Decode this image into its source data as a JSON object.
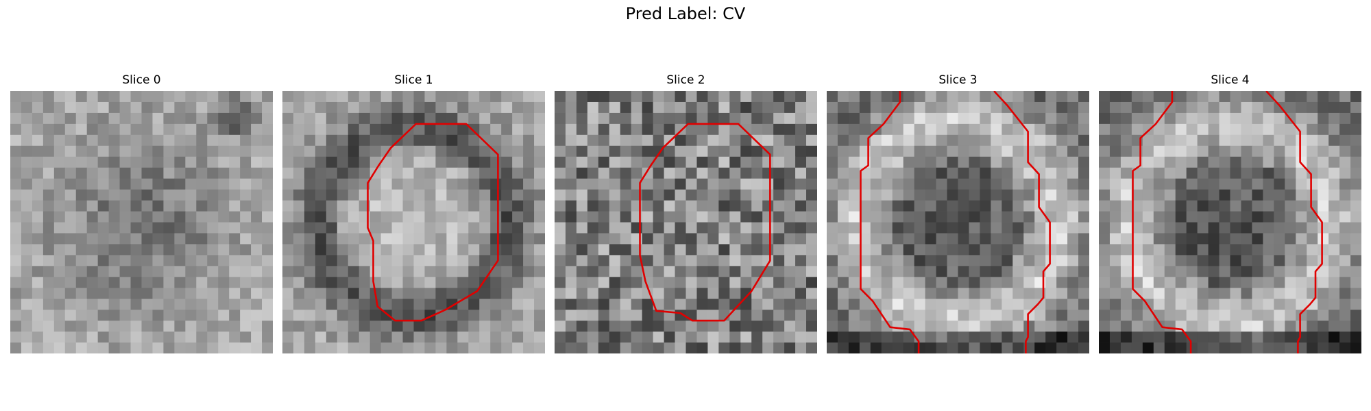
{
  "figure": {
    "title": "Pred Label: CV"
  },
  "panels": [
    {
      "title": "Slice 0",
      "seed": 11,
      "base": 150,
      "contrast": 45,
      "tiles": [],
      "contour": "none",
      "level": "bright"
    },
    {
      "title": "Slice 1",
      "seed": 23,
      "base": 140,
      "contrast": 60,
      "contour": "closed"
    },
    {
      "title": "Slice 2",
      "seed": 37,
      "base": 120,
      "contrast": 70,
      "contour": "closed"
    },
    {
      "title": "Slice 3",
      "seed": 41,
      "base": 110,
      "contrast": 70,
      "contour": "open"
    },
    {
      "title": "Slice 4",
      "seed": 53,
      "base": 110,
      "contrast": 70,
      "contour": "open"
    }
  ],
  "colors": {
    "contour": "#e00000"
  }
}
